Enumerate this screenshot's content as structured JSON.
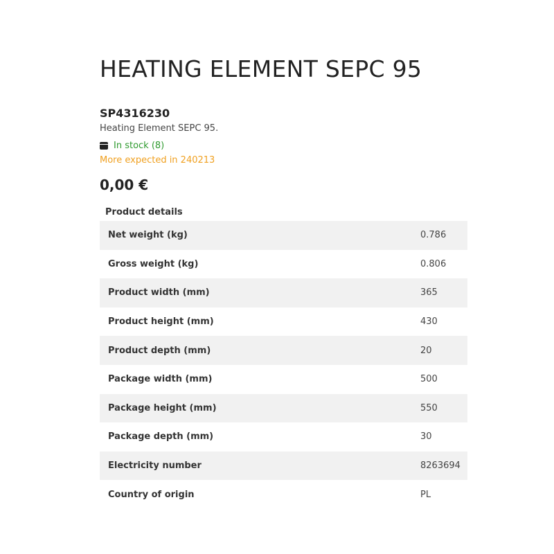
{
  "product": {
    "title": "HEATING ELEMENT SEPC 95",
    "sku": "SP4316230",
    "description": "Heating Element SEPC 95.",
    "stock": "In stock (8)",
    "expected": "More expected in 240213",
    "price": "0,00 €",
    "stock_icon": "box-icon"
  },
  "details": {
    "heading": "Product details",
    "rows": [
      {
        "label": "Net weight (kg)",
        "value": "0.786"
      },
      {
        "label": "Gross weight (kg)",
        "value": "0.806"
      },
      {
        "label": "Product width (mm)",
        "value": "365"
      },
      {
        "label": "Product height (mm)",
        "value": "430"
      },
      {
        "label": "Product depth (mm)",
        "value": "20"
      },
      {
        "label": "Package width (mm)",
        "value": "500"
      },
      {
        "label": "Package height (mm)",
        "value": "550"
      },
      {
        "label": "Package depth (mm)",
        "value": "30"
      },
      {
        "label": "Electricity number",
        "value": "8263694"
      },
      {
        "label": "Country of origin",
        "value": "PL"
      }
    ]
  },
  "colors": {
    "in_stock": "#2e9a2e",
    "expected": "#f0a020",
    "stripe": "#f1f1f1"
  }
}
